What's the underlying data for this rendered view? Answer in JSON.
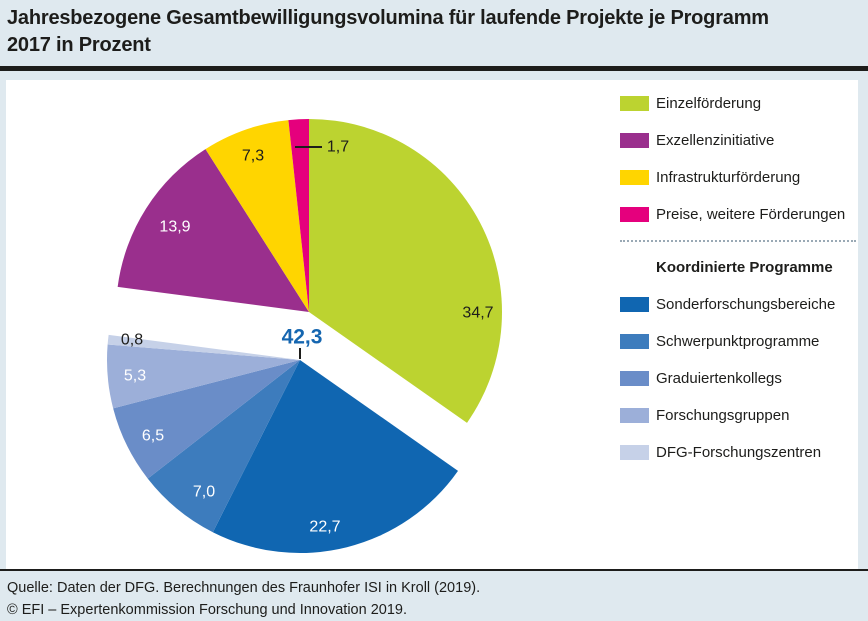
{
  "page": {
    "title_line1": "Jahresbezogene Gesamtbewilligungsvolumina für laufende Projekte je Programm",
    "title_line2": "2017 in Prozent",
    "source_line1": "Quelle: Daten der DFG. Berechnungen des Fraunhofer ISI in Kroll (2019).",
    "source_line2": "© EFI – Expertenkommission Forschung und Innovation 2019."
  },
  "colors": {
    "background": "#dfe9ef",
    "panel": "#ffffff",
    "text": "#1d1d1b",
    "group_label_blue": "#1566b0",
    "rule": "#1d1d1b"
  },
  "chart_data": {
    "type": "pie",
    "title": "Jahresbezogene Gesamtbewilligungsvolumina für laufende Projekte je Programm 2017 in Prozent",
    "unit": "percent",
    "start_angle_deg": 0,
    "direction": "clockwise",
    "exploded_group": "Koordinierte Programme",
    "slices": [
      {
        "name": "Einzelförderung",
        "value": 34.7,
        "label": "34,7",
        "color": "#bcd330",
        "group": null
      },
      {
        "name": "Sonderforschungsbereiche",
        "value": 22.7,
        "label": "22,7",
        "color": "#1066b1",
        "group": "Koordinierte Programme"
      },
      {
        "name": "Schwerpunktprogramme",
        "value": 7.0,
        "label": "7,0",
        "color": "#3d7cbd",
        "group": "Koordinierte Programme"
      },
      {
        "name": "Graduiertenkollegs",
        "value": 6.5,
        "label": "6,5",
        "color": "#6a8dc8",
        "group": "Koordinierte Programme"
      },
      {
        "name": "Forschungsgruppen",
        "value": 5.3,
        "label": "5,3",
        "color": "#9cafd9",
        "group": "Koordinierte Programme"
      },
      {
        "name": "DFG-Forschungszentren",
        "value": 0.8,
        "label": "0,8",
        "color": "#c6d1e8",
        "group": "Koordinierte Programme"
      },
      {
        "name": "Exzellenzinitiative",
        "value": 13.9,
        "label": "13,9",
        "color": "#9a2f8d",
        "group": null
      },
      {
        "name": "Infrastrukturförderung",
        "value": 7.3,
        "label": "7,3",
        "color": "#ffd500",
        "group": null
      },
      {
        "name": "Preise, weitere Förderungen",
        "value": 1.7,
        "label": "1,7",
        "color": "#e5007d",
        "group": null
      }
    ],
    "group_total": {
      "name": "Koordinierte Programme",
      "value": 42.3,
      "label": "42,3"
    },
    "legend_position": "right"
  }
}
